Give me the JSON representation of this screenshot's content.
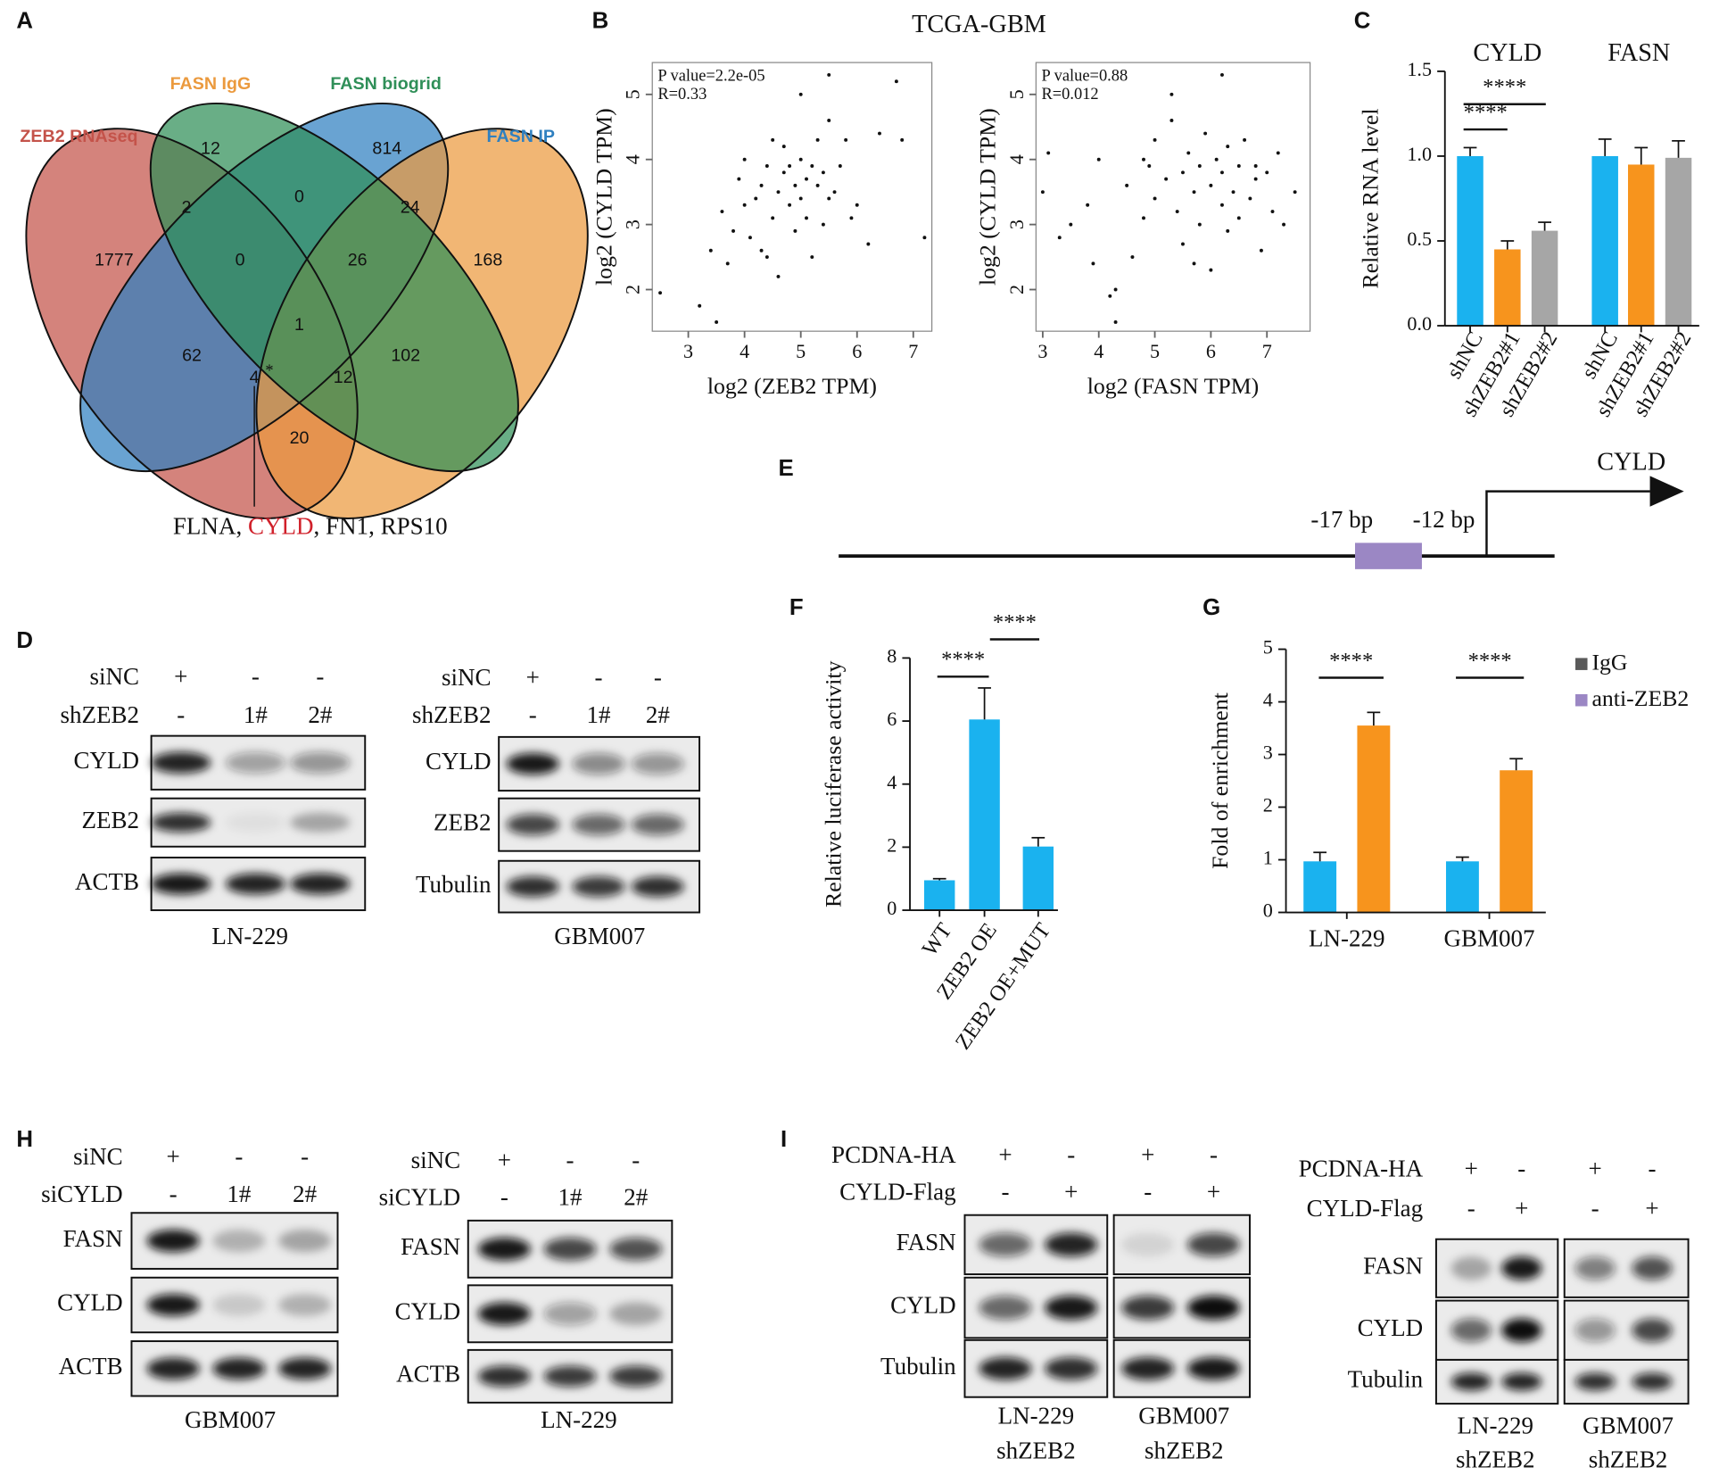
{
  "panel_labels": [
    "A",
    "B",
    "C",
    "D",
    "E",
    "F",
    "G",
    "H",
    "I"
  ],
  "venn": {
    "sets": [
      {
        "name": "ZEB2 RNAseq",
        "color": "#c4534a"
      },
      {
        "name": "FASN IgG",
        "color": "#eb9a3e"
      },
      {
        "name": "FASN biogrid",
        "color": "#2f8f58"
      },
      {
        "name": "FASN IP",
        "color": "#2f80c0"
      }
    ],
    "counts": [
      12,
      814,
      1777,
      168,
      2,
      0,
      24,
      0,
      26,
      1,
      62,
      102,
      4,
      12,
      20
    ],
    "marker": "*",
    "callout": [
      "FLNA, ",
      "CYLD",
      ", FN1, RPS10"
    ],
    "callout_highlight": "#d0202a"
  },
  "chart_data": [
    {
      "type": "scatter",
      "title": "TCGA-GBM",
      "x": [
        2.5,
        3.2,
        3.4,
        3.5,
        3.6,
        3.7,
        3.8,
        3.9,
        4.0,
        4.0,
        4.1,
        4.2,
        4.3,
        4.3,
        4.4,
        4.5,
        4.5,
        4.6,
        4.6,
        4.7,
        4.7,
        4.8,
        4.8,
        4.9,
        4.9,
        5.0,
        5.0,
        5.0,
        5.1,
        5.1,
        5.2,
        5.2,
        5.3,
        5.3,
        5.4,
        5.4,
        5.5,
        5.5,
        5.6,
        5.7,
        5.8,
        5.9,
        6.0,
        6.2,
        6.4,
        6.7,
        6.8,
        7.2,
        5.5,
        4.4
      ],
      "y": [
        1.95,
        1.75,
        2.6,
        1.5,
        3.2,
        2.4,
        2.9,
        3.7,
        3.3,
        4.0,
        2.8,
        3.4,
        3.6,
        2.6,
        3.9,
        3.1,
        4.3,
        3.5,
        2.2,
        3.8,
        4.2,
        3.3,
        3.9,
        3.6,
        2.9,
        4.0,
        3.4,
        5.0,
        3.7,
        3.1,
        3.9,
        2.5,
        3.6,
        4.3,
        3.8,
        3.0,
        4.6,
        3.4,
        3.5,
        3.9,
        4.3,
        3.1,
        3.3,
        2.7,
        4.4,
        5.2,
        4.3,
        2.8,
        5.3,
        2.5
      ],
      "xlim": [
        2.36,
        7.33
      ],
      "ylim": [
        1.36,
        5.49
      ],
      "xticks": [
        3,
        4,
        5,
        6,
        7
      ],
      "yticks": [
        2,
        3,
        4,
        5
      ],
      "xlabel": "log2 (ZEB2 TPM)",
      "ylabel": "log2 (CYLD TPM)",
      "annotations": [
        "P value=2.2e-05",
        "R=0.33"
      ],
      "color": "#111111"
    },
    {
      "type": "scatter",
      "x": [
        3.0,
        3.1,
        3.3,
        3.5,
        3.8,
        3.9,
        4.0,
        4.2,
        4.3,
        4.5,
        4.6,
        4.8,
        4.9,
        5.0,
        5.0,
        5.2,
        5.3,
        5.4,
        5.5,
        5.5,
        5.6,
        5.7,
        5.8,
        5.8,
        5.9,
        6.0,
        6.0,
        6.1,
        6.2,
        6.2,
        6.3,
        6.3,
        6.4,
        6.5,
        6.5,
        6.6,
        6.7,
        6.8,
        6.9,
        7.0,
        7.1,
        7.2,
        7.3,
        7.5,
        5.3,
        6.2,
        4.3,
        5.7,
        6.8,
        4.8
      ],
      "y": [
        3.5,
        4.1,
        2.8,
        3.0,
        3.3,
        2.4,
        4.0,
        1.9,
        1.5,
        3.6,
        2.5,
        3.1,
        3.9,
        3.4,
        4.3,
        3.7,
        5.0,
        3.2,
        3.8,
        2.7,
        4.1,
        3.5,
        3.9,
        3.0,
        4.4,
        3.6,
        2.3,
        4.0,
        3.3,
        3.8,
        4.2,
        2.9,
        3.5,
        3.9,
        3.1,
        4.3,
        3.4,
        3.7,
        2.6,
        3.8,
        3.2,
        4.1,
        3.0,
        3.5,
        4.6,
        5.3,
        2.0,
        2.4,
        3.9,
        4.0
      ],
      "xlim": [
        2.88,
        7.77
      ],
      "ylim": [
        1.36,
        5.49
      ],
      "xticks": [
        3,
        4,
        5,
        6,
        7
      ],
      "yticks": [
        2,
        3,
        4,
        5
      ],
      "xlabel": "log2 (FASN TPM)",
      "ylabel": "log2 (CYLD TPM)",
      "annotations": [
        "P value=0.88",
        "R=0.012"
      ],
      "color": "#111111"
    },
    {
      "type": "bar",
      "groups": [
        "CYLD",
        "FASN"
      ],
      "categories": [
        "shNC",
        "shZEB2#1",
        "shZEB2#2",
        "shNC",
        "shZEB2#1",
        "shZEB2#2"
      ],
      "values": [
        1.0,
        0.45,
        0.56,
        1.0,
        0.95,
        0.99
      ],
      "errors": [
        0.05,
        0.05,
        0.05,
        0.1,
        0.1,
        0.1
      ],
      "colors": [
        "#1ab2ef",
        "#f7941d",
        "#a6a6a6",
        "#1ab2ef",
        "#f7941d",
        "#a6a6a6"
      ],
      "ylim": [
        0,
        1.5
      ],
      "yticks": [
        {
          "value": 0,
          "label": "0.0"
        },
        {
          "value": 0.5,
          "label": "0.5"
        },
        {
          "value": 1,
          "label": "1.0"
        },
        {
          "value": 1.5,
          "label": "1.5"
        }
      ],
      "ylabel": "Relative RNA level",
      "annotations": [
        "****",
        "****"
      ]
    },
    {
      "type": "bar",
      "categories": [
        "WT",
        "ZEB2 OE",
        "ZEB2 OE+MUT"
      ],
      "values": [
        0.95,
        6.05,
        2.02
      ],
      "errors": [
        0.05,
        1.0,
        0.28
      ],
      "color": "#1ab2ef",
      "ylim": [
        0,
        8
      ],
      "yticks": [
        0,
        2,
        4,
        6,
        8
      ],
      "ylabel": "Relative luciferase activity",
      "annotations": [
        "****",
        "****"
      ]
    },
    {
      "type": "grouped_bar",
      "categories": [
        "LN-229",
        "GBM007"
      ],
      "series": [
        {
          "name": "IgG",
          "color": "#1ab2ef",
          "legend_color": "#5a5a5a",
          "values": [
            0.97,
            0.97
          ],
          "errors": [
            0.17,
            0.08
          ]
        },
        {
          "name": "anti-ZEB2",
          "color": "#f7941d",
          "legend_color": "#9b87c4",
          "values": [
            3.55,
            2.7
          ],
          "errors": [
            0.25,
            0.22
          ]
        }
      ],
      "ylim": [
        0,
        5
      ],
      "yticks": [
        0,
        1,
        2,
        3,
        4,
        5
      ],
      "ylabel": "Fold of enrichment",
      "annotations": [
        "****",
        "****"
      ]
    }
  ],
  "diagram_e": {
    "gene": "CYLD",
    "labels": [
      "-17 bp",
      "-12 bp"
    ],
    "site_color": "#9b87c4"
  },
  "blots": [
    {
      "treatments": [
        {
          "name": "siNC",
          "marks": [
            "+",
            "-",
            "-"
          ]
        },
        {
          "name": "shZEB2",
          "marks": [
            "-",
            "1#",
            "2#"
          ]
        }
      ],
      "rows": [
        {
          "name": "CYLD",
          "bands": [
            0.9,
            0.35,
            0.4
          ]
        },
        {
          "name": "ZEB2",
          "bands": [
            0.85,
            0.05,
            0.3
          ]
        },
        {
          "name": "ACTB",
          "bands": [
            0.95,
            0.9,
            0.9
          ]
        }
      ],
      "captions": [
        [
          "LN-229"
        ]
      ]
    },
    {
      "treatments": [
        {
          "name": "siNC",
          "marks": [
            "+",
            "-",
            "-"
          ]
        },
        {
          "name": "shZEB2",
          "marks": [
            "-",
            "1#",
            "2#"
          ]
        }
      ],
      "rows": [
        {
          "name": "CYLD",
          "bands": [
            0.95,
            0.45,
            0.4
          ]
        },
        {
          "name": "ZEB2",
          "bands": [
            0.75,
            0.6,
            0.6
          ]
        },
        {
          "name": "Tubulin",
          "bands": [
            0.85,
            0.8,
            0.85
          ]
        }
      ],
      "captions": [
        [
          "GBM007"
        ]
      ]
    },
    {
      "treatments": [
        {
          "name": "siNC",
          "marks": [
            "+",
            "-",
            "-"
          ]
        },
        {
          "name": "siCYLD",
          "marks": [
            "-",
            "1#",
            "2#"
          ]
        }
      ],
      "rows": [
        {
          "name": "FASN",
          "bands": [
            0.95,
            0.25,
            0.3
          ]
        },
        {
          "name": "CYLD",
          "bands": [
            0.95,
            0.15,
            0.25
          ]
        },
        {
          "name": "ACTB",
          "bands": [
            0.9,
            0.9,
            0.9
          ]
        }
      ],
      "captions": [
        [
          "GBM007"
        ]
      ]
    },
    {
      "treatments": [
        {
          "name": "siNC",
          "marks": [
            "+",
            "-",
            "-"
          ]
        },
        {
          "name": "siCYLD",
          "marks": [
            "-",
            "1#",
            "2#"
          ]
        }
      ],
      "rows": [
        {
          "name": "FASN",
          "bands": [
            0.95,
            0.75,
            0.7
          ]
        },
        {
          "name": "CYLD",
          "bands": [
            0.95,
            0.35,
            0.3
          ]
        },
        {
          "name": "ACTB",
          "bands": [
            0.85,
            0.8,
            0.8
          ]
        }
      ],
      "captions": [
        [
          "LN-229"
        ]
      ]
    },
    {
      "treatments": [
        {
          "name": "PCDNA-HA",
          "marks": [
            "+",
            "-",
            "+",
            "-"
          ]
        },
        {
          "name": "CYLD-Flag",
          "marks": [
            "-",
            "+",
            "-",
            "+"
          ]
        }
      ],
      "rows": [
        {
          "name": "FASN",
          "bands": [
            0.6,
            0.9,
            0.1,
            0.75
          ]
        },
        {
          "name": "CYLD",
          "bands": [
            0.6,
            0.95,
            0.8,
            1.0
          ]
        },
        {
          "name": "Tubulin",
          "bands": [
            0.9,
            0.85,
            0.9,
            0.95
          ]
        }
      ],
      "captions": [
        [
          "LN-229",
          "shZEB2"
        ],
        [
          "GBM007",
          "shZEB2"
        ]
      ]
    },
    {
      "treatments": [
        {
          "name": "PCDNA-HA",
          "marks": [
            "+",
            "-",
            "+",
            "-"
          ]
        },
        {
          "name": "CYLD-Flag",
          "marks": [
            "-",
            "+",
            "-",
            "+"
          ]
        }
      ],
      "rows": [
        {
          "name": "FASN",
          "bands": [
            0.3,
            0.95,
            0.5,
            0.7
          ]
        },
        {
          "name": "CYLD",
          "bands": [
            0.6,
            1.0,
            0.4,
            0.75
          ]
        },
        {
          "name": "Tubulin",
          "bands": [
            0.9,
            0.9,
            0.85,
            0.85
          ]
        }
      ],
      "captions": [
        [
          "LN-229",
          "shZEB2"
        ],
        [
          "GBM007",
          "shZEB2"
        ]
      ]
    }
  ]
}
